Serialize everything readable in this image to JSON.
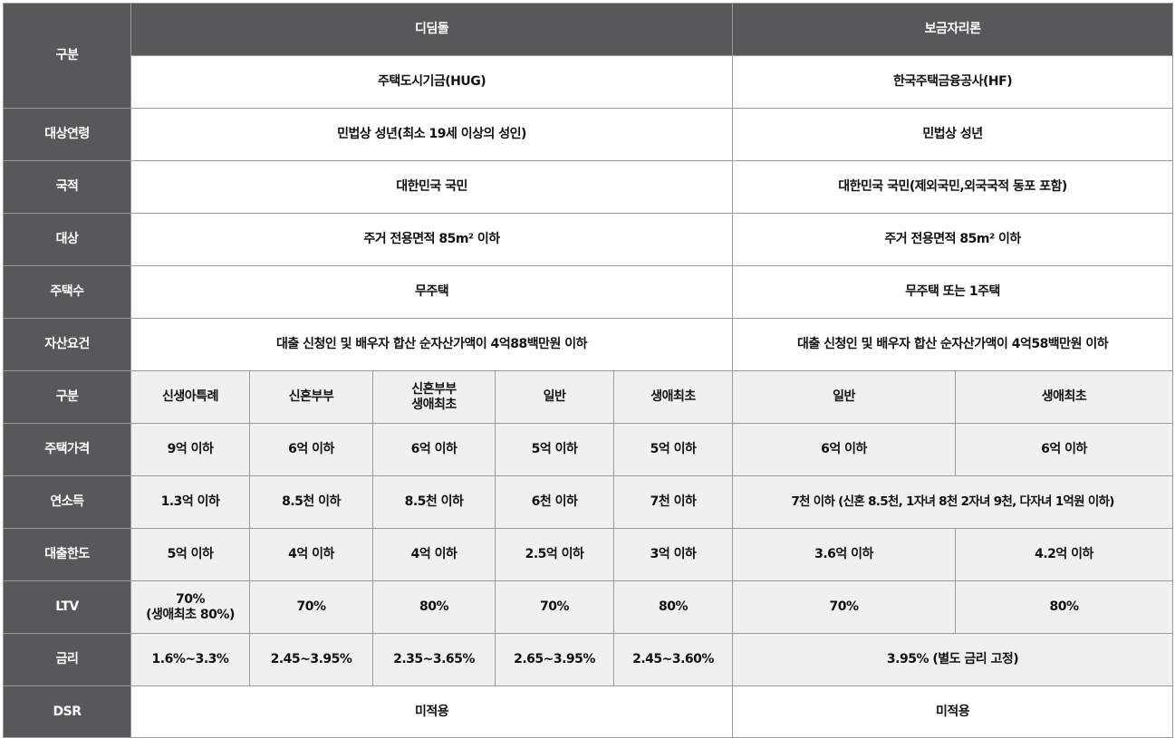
{
  "header": {
    "category_label": "구분",
    "didimdol_title": "디딤돌",
    "bogeumjari_title": "보금자리론",
    "didimdol_org": "주택도시기금(HUG)",
    "bogeumjari_org": "한국주택금융공사(HF)"
  },
  "common_rows": [
    {
      "label": "대상연령",
      "didimdol": "민법상 성년(최소 19세 이상의 성인)",
      "bogeumjari": "민법상 성년"
    },
    {
      "label": "국적",
      "didimdol": "대한민국 국민",
      "bogeumjari": "대한민국 국민(제외국민,외국국적 동포 포함)"
    },
    {
      "label": "대상",
      "didimdol": "주거 전용면적 85m² 이하",
      "bogeumjari": "주거 전용면적 85m² 이하"
    },
    {
      "label": "주택수",
      "didimdol": "무주택",
      "bogeumjari": "무주택 또는 1주택"
    },
    {
      "label": "자산요건",
      "didimdol": "대출 신청인 및 배우자 합산 순자산가액이 4억88백만원 이하",
      "bogeumjari": "대출 신청인 및 배우자 합산 순자산가액이 4억58백만원 이하"
    }
  ],
  "sub_header": {
    "label": "구분",
    "didimdol_cols": [
      "신생아특례",
      "신혼부부",
      "신혼부부",
      "일반",
      "생애최초"
    ],
    "didimdol_col3_line2": "생애최초",
    "bogeumjari_cols": [
      "일반",
      "생애최초"
    ]
  },
  "house_price": {
    "label": "주택가격",
    "didimdol": [
      "9억 이하",
      "6억 이하",
      "6억 이하",
      "5억 이하",
      "5억 이하"
    ],
    "bogeumjari": [
      "6억 이하",
      "6억 이하"
    ]
  },
  "income": {
    "label": "연소득",
    "didimdol": [
      "1.3억 이하",
      "8.5천 이하",
      "8.5천 이하",
      "6천 이하",
      "7천 이하"
    ],
    "bogeumjari": "7천 이하 (신혼 8.5천, 1자녀 8천 2자녀 9천, 다자녀 1억원 이하)"
  },
  "loan_limit": {
    "label": "대출한도",
    "didimdol": [
      "5억 이하",
      "4억 이하",
      "4억 이하",
      "2.5억 이하",
      "3억 이하"
    ],
    "bogeumjari": [
      "3.6억 이하",
      "4.2억 이하"
    ]
  },
  "ltv": {
    "label": "LTV",
    "didimdol_first_line1": "70%",
    "didimdol_first_line2": "(생애최초 80%)",
    "didimdol": [
      "70%",
      "80%",
      "70%",
      "80%"
    ],
    "bogeumjari": [
      "70%",
      "80%"
    ]
  },
  "rate": {
    "label": "금리",
    "didimdol": [
      "1.6%~3.3%",
      "2.45~3.95%",
      "2.35~3.65%",
      "2.65~3.95%",
      "2.45~3.60%"
    ],
    "bogeumjari": "3.95% (별도 금리 고정)"
  },
  "dsr": {
    "label": "DSR",
    "didimdol": "미적용",
    "bogeumjari": "미적용"
  },
  "colors": {
    "header_bg": "#56585a",
    "cell_bg": "#ffffff",
    "alt_bg": "#f0f0f0",
    "border": "#9a9a9a"
  }
}
